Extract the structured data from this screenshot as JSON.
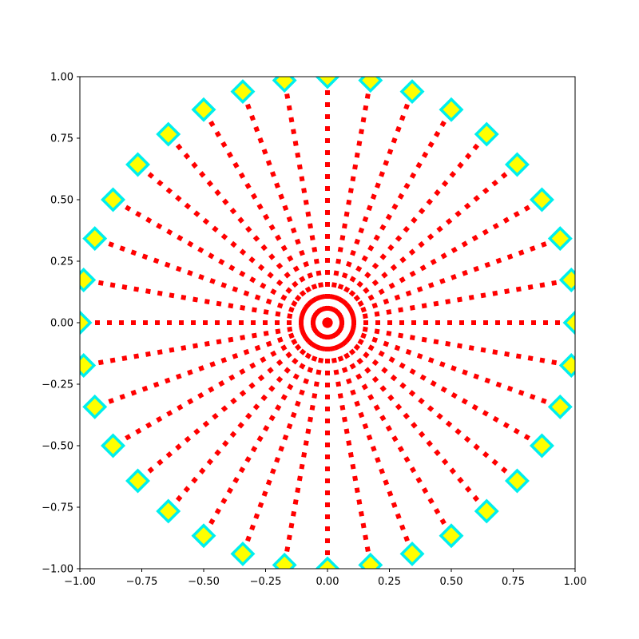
{
  "chart_data": {
    "type": "line",
    "title": "",
    "xlabel": "",
    "ylabel": "",
    "xlim": [
      -1.0,
      1.0
    ],
    "ylim": [
      -1.0,
      1.0
    ],
    "grid": false,
    "legend": "none",
    "spokes": {
      "count": 36,
      "angle_step_deg": 10,
      "start": [
        0,
        0
      ],
      "end_radius": 1.0,
      "line_style": "dotted",
      "line_color": "#ff0000",
      "end_marker": "diamond",
      "marker_face": "#ffff00",
      "marker_edge": "#00eeee"
    },
    "xticks": [
      -1.0,
      -0.75,
      -0.5,
      -0.25,
      0.0,
      0.25,
      0.5,
      0.75,
      1.0
    ],
    "yticks": [
      -1.0,
      -0.75,
      -0.5,
      -0.25,
      0.0,
      0.25,
      0.5,
      0.75,
      1.0
    ],
    "xtick_labels": [
      "−1.00",
      "−0.75",
      "−0.50",
      "−0.25",
      "0.00",
      "0.25",
      "0.50",
      "0.75",
      "1.00"
    ],
    "ytick_labels": [
      "−1.00",
      "−0.75",
      "−0.50",
      "−0.25",
      "0.00",
      "0.25",
      "0.50",
      "0.75",
      "1.00"
    ]
  }
}
